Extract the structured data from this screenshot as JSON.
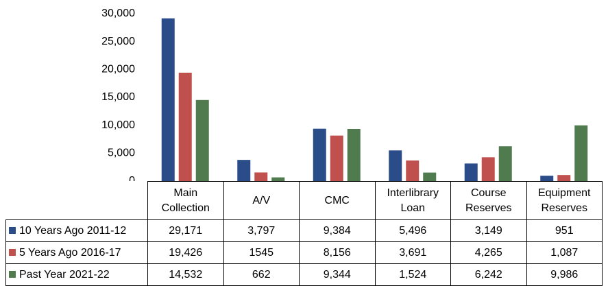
{
  "chart_data": {
    "type": "bar",
    "categories": [
      "Main Collection",
      "A/V",
      "CMC",
      "Interlibrary Loan",
      "Course Reserves",
      "Equipment Reserves"
    ],
    "series": [
      {
        "name": "10 Years Ago 2011-12",
        "color": "#2a4d8a",
        "values": [
          29171,
          3797,
          9384,
          5496,
          3149,
          951
        ],
        "value_labels": [
          "29,171",
          "3,797",
          "9,384",
          "5,496",
          "3,149",
          "951"
        ]
      },
      {
        "name": "5 Years Ago 2016-17",
        "color": "#c0504d",
        "values": [
          19426,
          1545,
          8156,
          3691,
          4265,
          1087
        ],
        "value_labels": [
          "19,426",
          "1545",
          "8,156",
          "3,691",
          "4,265",
          "1,087"
        ]
      },
      {
        "name": "Past Year 2021-22",
        "color": "#4f7b4f",
        "values": [
          14532,
          662,
          9344,
          1524,
          6242,
          9986
        ],
        "value_labels": [
          "14,532",
          "662",
          "9,344",
          "1,524",
          "6,242",
          "9,986"
        ]
      }
    ],
    "ylim": [
      0,
      30000
    ],
    "yticks": [
      0,
      {
        "value": 5000,
        "label": "5,000"
      },
      {
        "value": 10000,
        "label": "10,000"
      },
      {
        "value": 15000,
        "label": "15,000"
      },
      {
        "value": 20000,
        "label": "20,000"
      },
      {
        "value": 25000,
        "label": "25,000"
      },
      {
        "value": 30000,
        "label": "30,000"
      }
    ]
  }
}
